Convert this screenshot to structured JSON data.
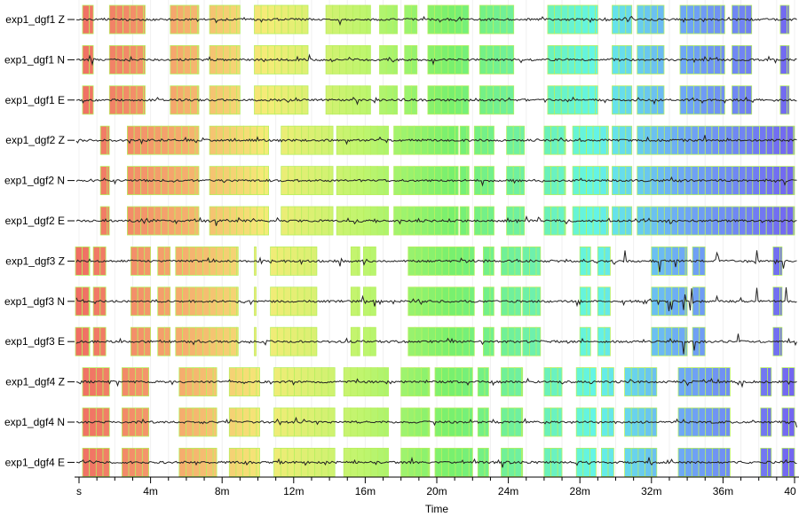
{
  "chart_data": {
    "type": "waveform-timeline",
    "xlabel": "Time",
    "x_unit": "minutes",
    "xlim": [
      0,
      40
    ],
    "ticks": [
      {
        "value": 0,
        "label": "s"
      },
      {
        "value": 4,
        "label": "4m"
      },
      {
        "value": 8,
        "label": "8m"
      },
      {
        "value": 12,
        "label": "12m"
      },
      {
        "value": 16,
        "label": "16m"
      },
      {
        "value": 20,
        "label": "20m"
      },
      {
        "value": 24,
        "label": "24m"
      },
      {
        "value": 28,
        "label": "28m"
      },
      {
        "value": 32,
        "label": "32m"
      },
      {
        "value": 36,
        "label": "36m"
      },
      {
        "value": 40,
        "label": "40"
      }
    ],
    "traces": [
      {
        "label": "exp1_dgf1 Z",
        "station": "dgf1"
      },
      {
        "label": "exp1_dgf1 N",
        "station": "dgf1"
      },
      {
        "label": "exp1_dgf1 E",
        "station": "dgf1"
      },
      {
        "label": "exp1_dgf2 Z",
        "station": "dgf2"
      },
      {
        "label": "exp1_dgf2 N",
        "station": "dgf2"
      },
      {
        "label": "exp1_dgf2 E",
        "station": "dgf2"
      },
      {
        "label": "exp1_dgf3 Z",
        "station": "dgf3",
        "spiky": true
      },
      {
        "label": "exp1_dgf3 N",
        "station": "dgf3",
        "spiky": true
      },
      {
        "label": "exp1_dgf3 E",
        "station": "dgf3",
        "spiky": true
      },
      {
        "label": "exp1_dgf4 Z",
        "station": "dgf4"
      },
      {
        "label": "exp1_dgf4 N",
        "station": "dgf4"
      },
      {
        "label": "exp1_dgf4 E",
        "station": "dgf4"
      }
    ],
    "segments": {
      "dgf1": [
        [
          0.2,
          0.8
        ],
        [
          1.7,
          3.7
        ],
        [
          5.1,
          6.7
        ],
        [
          7.3,
          9.0
        ],
        [
          9.8,
          12.8
        ],
        [
          13.8,
          16.3
        ],
        [
          16.8,
          17.8
        ],
        [
          18.2,
          18.9
        ],
        [
          19.5,
          21.8
        ],
        [
          22.4,
          24.3
        ],
        [
          26.2,
          29.0
        ],
        [
          29.8,
          30.9
        ],
        [
          31.2,
          32.7
        ],
        [
          33.6,
          36.1
        ],
        [
          36.5,
          37.6
        ],
        [
          39.2,
          39.7
        ]
      ],
      "dgf2": [
        [
          1.2,
          1.7
        ],
        [
          2.7,
          6.7
        ],
        [
          7.3,
          10.6
        ],
        [
          11.3,
          14.2
        ],
        [
          14.4,
          17.3
        ],
        [
          17.6,
          21.2
        ],
        [
          21.3,
          21.8
        ],
        [
          22.1,
          23.2
        ],
        [
          23.9,
          24.9
        ],
        [
          26.0,
          27.2
        ],
        [
          27.6,
          29.6
        ],
        [
          29.8,
          30.9
        ],
        [
          31.2,
          40.0
        ]
      ],
      "dgf3": [
        [
          -0.2,
          0.6
        ],
        [
          0.8,
          1.5
        ],
        [
          2.9,
          4.0
        ],
        [
          4.4,
          5.1
        ],
        [
          5.4,
          8.9
        ],
        [
          9.8,
          9.9
        ],
        [
          10.7,
          13.3
        ],
        [
          15.2,
          15.7
        ],
        [
          15.9,
          16.6
        ],
        [
          18.4,
          22.1
        ],
        [
          22.6,
          23.2
        ],
        [
          23.6,
          24.7
        ],
        [
          24.8,
          25.8
        ],
        [
          28.0,
          28.6
        ],
        [
          29.0,
          29.7
        ],
        [
          32.0,
          34.0
        ],
        [
          34.3,
          35.0
        ],
        [
          38.8,
          39.3
        ]
      ],
      "dgf4": [
        [
          0.2,
          1.7
        ],
        [
          2.4,
          3.9
        ],
        [
          5.6,
          7.7
        ],
        [
          8.4,
          10.1
        ],
        [
          10.9,
          14.3
        ],
        [
          14.8,
          17.3
        ],
        [
          18.0,
          19.6
        ],
        [
          19.9,
          22.0
        ],
        [
          22.3,
          22.9
        ],
        [
          23.6,
          24.8
        ],
        [
          26.0,
          27.0
        ],
        [
          27.8,
          28.9
        ],
        [
          29.2,
          29.9
        ],
        [
          30.5,
          32.3
        ],
        [
          33.5,
          36.4
        ],
        [
          38.1,
          38.7
        ],
        [
          39.3,
          40.0
        ]
      ]
    }
  }
}
